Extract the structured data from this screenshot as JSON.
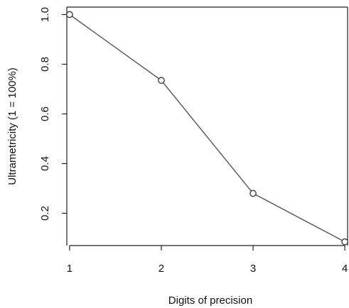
{
  "chart_data": {
    "type": "line",
    "title": "",
    "xlabel": "Digits of precision",
    "ylabel": "Ultrametricity (1 = 100%)",
    "x": [
      1,
      2,
      3,
      4
    ],
    "values": [
      1.0,
      0.735,
      0.28,
      0.085
    ],
    "xticks": [
      1,
      2,
      3,
      4
    ],
    "xtick_labels": [
      "1",
      "2",
      "3",
      "4"
    ],
    "yticks": [
      0.2,
      0.4,
      0.6,
      0.8,
      1.0
    ],
    "ytick_labels": [
      "0.2",
      "0.4",
      "0.6",
      "0.8",
      "1.0"
    ],
    "xlim": [
      0.97,
      4.03
    ],
    "ylim": [
      0.07,
      1.03
    ],
    "grid": false,
    "marker": "open-circle",
    "colors": {
      "line": "#555555",
      "marker_stroke": "#333333",
      "axis": "#222222"
    }
  }
}
